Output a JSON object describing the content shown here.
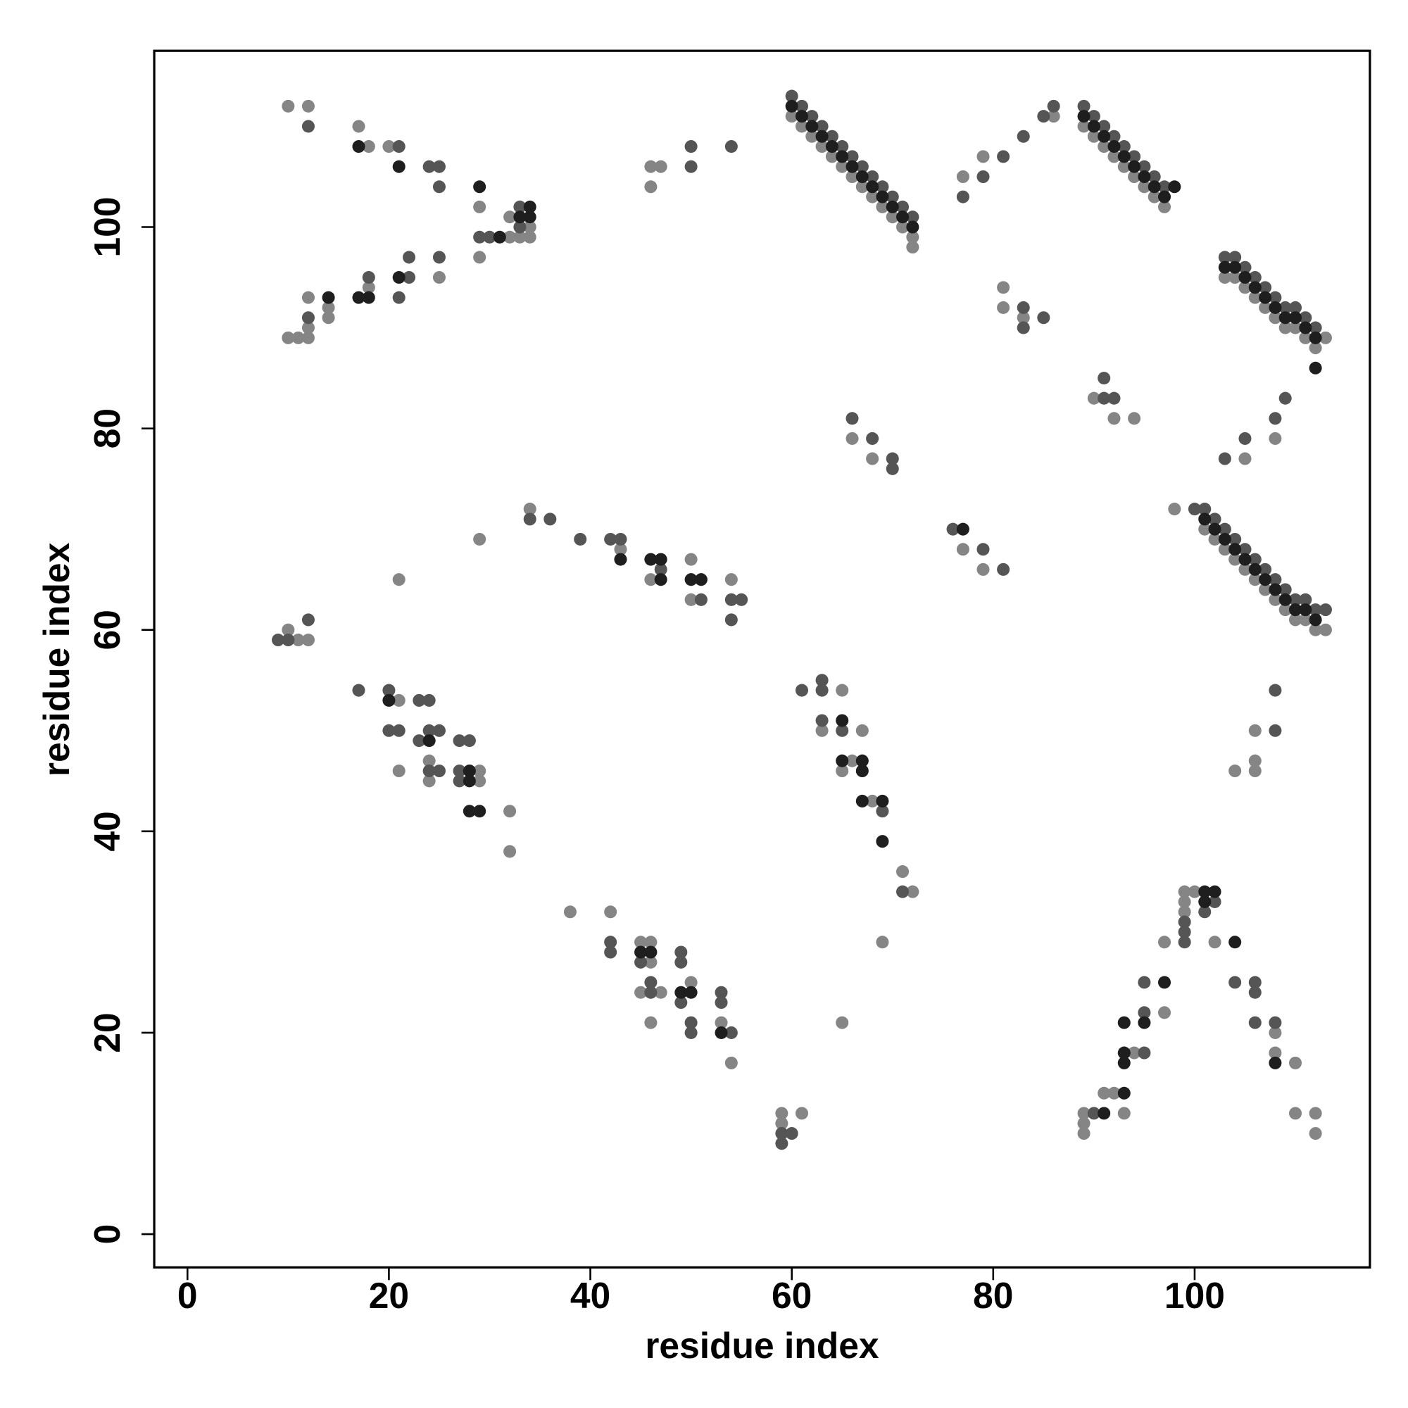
{
  "chart_data": {
    "type": "scatter",
    "xlabel": "residue index",
    "ylabel": "residue index",
    "xlim": [
      -3.3,
      117.4
    ],
    "ylim": [
      -3.3,
      117.5
    ],
    "xticks": [
      0,
      20,
      40,
      60,
      80,
      100
    ],
    "yticks": [
      0,
      20,
      40,
      60,
      80,
      100
    ],
    "series": [
      {
        "color": "#858585",
        "x": [
          10,
          12,
          17,
          18,
          20,
          29,
          32,
          33,
          34,
          32,
          34,
          29,
          10,
          11,
          12,
          12,
          12,
          14,
          14,
          18,
          25,
          46,
          47,
          46,
          60,
          61,
          62,
          63,
          64,
          65,
          66,
          67,
          68,
          69,
          70,
          71,
          72,
          72,
          77,
          79,
          86,
          89,
          90,
          91,
          92,
          93,
          94,
          95,
          96,
          97,
          103,
          104,
          105,
          106,
          107,
          108,
          109,
          110,
          111,
          112,
          113,
          81,
          81,
          83,
          90,
          92,
          94,
          108,
          105,
          66,
          68,
          101,
          102,
          103,
          104,
          105,
          106,
          107,
          108,
          109,
          110,
          111,
          112,
          98,
          113,
          77,
          79,
          34,
          29,
          43,
          46,
          50,
          50,
          54,
          21,
          10,
          11,
          12,
          21,
          24,
          24,
          21,
          29,
          29,
          32,
          32,
          38,
          42,
          45,
          46,
          46,
          45,
          47,
          50,
          46,
          53,
          54,
          59,
          59,
          61,
          63,
          65,
          67,
          65,
          66,
          68,
          71,
          72,
          69,
          65,
          104,
          106,
          106,
          106,
          99,
          100,
          99,
          99,
          97,
          102,
          97,
          94,
          93,
          108,
          108,
          110,
          92,
          91,
          89,
          89,
          89,
          110,
          112,
          112
        ],
        "values": [
          112,
          112,
          110,
          108,
          108,
          102,
          99,
          99,
          99,
          101,
          100,
          97,
          89,
          89,
          89,
          90,
          93,
          92,
          91,
          94,
          95,
          106,
          106,
          104,
          111,
          110,
          109,
          108,
          107,
          106,
          105,
          104,
          103,
          102,
          101,
          100,
          99,
          98,
          105,
          107,
          111,
          110,
          109,
          108,
          107,
          106,
          105,
          104,
          103,
          102,
          95,
          95,
          94,
          93,
          92,
          91,
          90,
          90,
          89,
          88,
          89,
          94,
          92,
          91,
          83,
          81,
          81,
          79,
          77,
          79,
          77,
          70,
          69,
          68,
          67,
          66,
          65,
          64,
          63,
          62,
          61,
          61,
          60,
          72,
          60,
          68,
          66,
          72,
          69,
          68,
          65,
          67,
          63,
          65,
          65,
          60,
          59,
          59,
          53,
          47,
          45,
          46,
          46,
          45,
          42,
          38,
          32,
          32,
          29,
          29,
          27,
          24,
          24,
          25,
          21,
          21,
          17,
          12,
          11,
          12,
          50,
          54,
          50,
          46,
          47,
          43,
          36,
          34,
          29,
          21,
          46,
          47,
          46,
          50,
          34,
          34,
          33,
          32,
          29,
          29,
          22,
          18,
          12,
          20,
          18,
          17,
          14,
          14,
          12,
          11,
          10,
          12,
          12,
          10
        ]
      },
      {
        "color": "#555555",
        "x": [
          12,
          21,
          24,
          25,
          25,
          29,
          30,
          33,
          33,
          12,
          18,
          21,
          22,
          22,
          25,
          50,
          50,
          54,
          60,
          61,
          62,
          63,
          64,
          65,
          66,
          67,
          68,
          69,
          70,
          71,
          72,
          89,
          90,
          91,
          92,
          93,
          94,
          95,
          96,
          97,
          103,
          104,
          105,
          106,
          107,
          108,
          109,
          110,
          111,
          112,
          101,
          102,
          103,
          104,
          105,
          106,
          107,
          108,
          109,
          110,
          111,
          112,
          77,
          79,
          81,
          83,
          85,
          86,
          83,
          83,
          85,
          91,
          92,
          91,
          109,
          108,
          105,
          103,
          66,
          68,
          70,
          70,
          100,
          113,
          76,
          79,
          81,
          34,
          36,
          39,
          42,
          43,
          47,
          51,
          54,
          55,
          54,
          9,
          10,
          12,
          17,
          20,
          20,
          21,
          23,
          24,
          23,
          24,
          25,
          24,
          25,
          27,
          28,
          27,
          27,
          42,
          42,
          45,
          46,
          46,
          49,
          49,
          49,
          50,
          50,
          53,
          53,
          54,
          59,
          60,
          59,
          61,
          63,
          63,
          63,
          65,
          69,
          71,
          108,
          108,
          102,
          99,
          99,
          99,
          101,
          95,
          95,
          95,
          104,
          106,
          106,
          106,
          108,
          90
        ],
        "values": [
          110,
          108,
          106,
          106,
          104,
          99,
          99,
          102,
          100,
          91,
          95,
          93,
          95,
          97,
          97,
          108,
          106,
          108,
          113,
          112,
          111,
          110,
          109,
          108,
          107,
          106,
          105,
          104,
          103,
          102,
          101,
          112,
          111,
          110,
          109,
          108,
          107,
          106,
          105,
          104,
          97,
          97,
          96,
          95,
          94,
          93,
          92,
          92,
          91,
          90,
          72,
          71,
          70,
          69,
          68,
          67,
          66,
          65,
          64,
          63,
          63,
          62,
          103,
          105,
          107,
          109,
          111,
          112,
          92,
          90,
          91,
          83,
          83,
          85,
          83,
          81,
          79,
          77,
          81,
          79,
          77,
          76,
          72,
          62,
          70,
          68,
          66,
          71,
          71,
          69,
          69,
          69,
          66,
          63,
          63,
          63,
          61,
          59,
          59,
          61,
          54,
          54,
          50,
          50,
          53,
          53,
          49,
          50,
          50,
          46,
          46,
          49,
          49,
          46,
          45,
          29,
          28,
          27,
          25,
          24,
          28,
          27,
          23,
          21,
          20,
          24,
          23,
          20,
          10,
          10,
          9,
          54,
          55,
          54,
          51,
          50,
          42,
          34,
          50,
          54,
          33,
          31,
          30,
          29,
          32,
          25,
          22,
          18,
          25,
          25,
          24,
          21,
          21,
          12
        ]
      },
      {
        "color": "#1e1e1e",
        "x": [
          17,
          21,
          29,
          31,
          33,
          34,
          34,
          14,
          17,
          18,
          21,
          60,
          61,
          62,
          63,
          64,
          65,
          66,
          67,
          68,
          69,
          70,
          71,
          72,
          89,
          90,
          91,
          92,
          93,
          94,
          95,
          96,
          97,
          98,
          103,
          104,
          105,
          106,
          107,
          108,
          109,
          110,
          111,
          112,
          112,
          101,
          102,
          103,
          104,
          105,
          106,
          107,
          108,
          109,
          110,
          111,
          112,
          77,
          43,
          46,
          47,
          47,
          50,
          51,
          24,
          20,
          28,
          28,
          28,
          29,
          45,
          46,
          49,
          50,
          53,
          65,
          65,
          67,
          67,
          67,
          69,
          69,
          101,
          102,
          101,
          95,
          93,
          93,
          93,
          93,
          91,
          108,
          97,
          104
        ],
        "values": [
          108,
          106,
          104,
          99,
          101,
          101,
          102,
          93,
          93,
          93,
          95,
          112,
          111,
          110,
          109,
          108,
          107,
          106,
          105,
          104,
          103,
          102,
          101,
          100,
          111,
          110,
          109,
          108,
          107,
          106,
          105,
          104,
          103,
          104,
          96,
          96,
          95,
          94,
          93,
          92,
          91,
          91,
          90,
          89,
          86,
          71,
          70,
          69,
          68,
          67,
          66,
          65,
          64,
          63,
          62,
          62,
          61,
          70,
          67,
          67,
          67,
          65,
          65,
          65,
          49,
          53,
          46,
          45,
          42,
          42,
          28,
          28,
          24,
          24,
          20,
          51,
          47,
          47,
          46,
          43,
          43,
          39,
          34,
          34,
          33,
          21,
          21,
          18,
          17,
          14,
          12,
          17,
          25,
          29
        ]
      }
    ]
  }
}
